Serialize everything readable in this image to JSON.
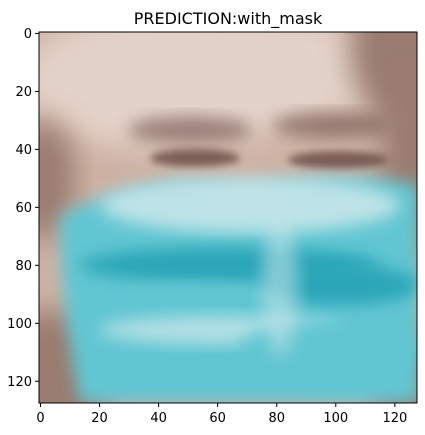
{
  "chart_data": {
    "type": "heatmap",
    "title": "PREDICTION:with_mask",
    "xlabel": "",
    "ylabel": "",
    "xlim": [
      0,
      128
    ],
    "ylim": [
      128,
      0
    ],
    "x_ticks": [
      0,
      20,
      40,
      60,
      80,
      100,
      120
    ],
    "y_ticks": [
      0,
      20,
      40,
      60,
      80,
      100,
      120
    ],
    "grid": false,
    "image_content": "blurred face with a light blue surgical mask",
    "colors": {
      "skin": "#cdb2a4",
      "skin_light": "#e3d2c8",
      "skin_shadow": "#9a7c70",
      "eye": "#6e5048",
      "mask_light": "#c8e6ea",
      "mask": "#62c6d2",
      "mask_dark": "#2ba6b8",
      "frame": "#000000"
    }
  }
}
